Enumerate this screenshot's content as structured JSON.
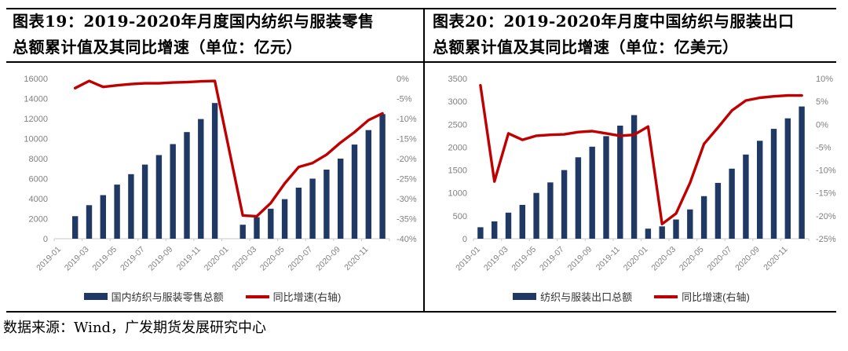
{
  "page": {
    "source": "数据来源：Wind，广发期货发展研究中心"
  },
  "panels": [
    {
      "title": "图表19：2019-2020年月度国内纺织与服装零售总额累计值及其同比增速（单位：亿元）"
    },
    {
      "title": "图表20：2019-2020年月度中国纺织与服装出口总额累计值及其同比增速（单位：亿美元）"
    }
  ],
  "colors": {
    "bar": "#1f3864",
    "line": "#c00000",
    "axis_text": "#808080",
    "axis_line": "#c9c9c9"
  },
  "chart_data": [
    {
      "type": "bar+line",
      "title": "图表19：2019-2020年月度国内纺织与服装零售总额累计值及其同比增速（单位：亿元）",
      "categories": [
        "2019-01",
        "2019-02",
        "2019-03",
        "2019-04",
        "2019-05",
        "2019-06",
        "2019-07",
        "2019-08",
        "2019-09",
        "2019-10",
        "2019-11",
        "2019-12",
        "2020-01",
        "2020-02",
        "2020-03",
        "2020-04",
        "2020-05",
        "2020-06",
        "2020-07",
        "2020-08",
        "2020-09",
        "2020-10",
        "2020-11",
        "2020-12"
      ],
      "x_tick_labels": [
        "2019-01",
        "2019-03",
        "2019-05",
        "2019-07",
        "2019-09",
        "2019-11",
        "2020-01",
        "2020-03",
        "2020-05",
        "2020-07",
        "2020-09",
        "2020-11"
      ],
      "series": [
        {
          "name": "国内纺织与服装零售总额",
          "type": "bar",
          "axis": "left",
          "color": "#1f3864",
          "values": [
            null,
            2250,
            3350,
            4350,
            5400,
            6450,
            7400,
            8350,
            9450,
            10650,
            11950,
            13550,
            null,
            1400,
            2150,
            3000,
            3950,
            5100,
            6000,
            6900,
            8000,
            9400,
            10850,
            12450
          ]
        },
        {
          "name": "同比增速(右轴)",
          "type": "line",
          "axis": "right",
          "color": "#c00000",
          "values": [
            null,
            -2.4,
            -0.6,
            -2.1,
            -1.7,
            -1.4,
            -1.2,
            -1.2,
            -1.0,
            -0.9,
            -0.7,
            -0.6,
            null,
            -34.2,
            -34.4,
            -31.1,
            -26.2,
            -22.1,
            -21.1,
            -19.0,
            -16.0,
            -13.4,
            -10.4,
            -8.7
          ]
        }
      ],
      "y_left": {
        "min": 0,
        "max": 16000,
        "ticks": [
          0,
          2000,
          4000,
          6000,
          8000,
          10000,
          12000,
          14000,
          16000
        ]
      },
      "y_right": {
        "min": -40,
        "max": 0,
        "ticks": [
          "0%",
          "-5%",
          "-10%",
          "-15%",
          "-20%",
          "-25%",
          "-30%",
          "-35%",
          "-40%"
        ]
      },
      "grid": false,
      "legend_position": "bottom"
    },
    {
      "type": "bar+line",
      "title": "图表20：2019-2020年月度中国纺织与服装出口总额累计值及其同比增速（单位：亿美元）",
      "categories": [
        "2019-01",
        "2019-02",
        "2019-03",
        "2019-04",
        "2019-05",
        "2019-06",
        "2019-07",
        "2019-08",
        "2019-09",
        "2019-10",
        "2019-11",
        "2019-12",
        "2020-01",
        "2020-02",
        "2020-03",
        "2020-04",
        "2020-05",
        "2020-06",
        "2020-07",
        "2020-08",
        "2020-09",
        "2020-10",
        "2020-11",
        "2020-12"
      ],
      "x_tick_labels": [
        "2019-01",
        "2019-03",
        "2019-05",
        "2019-07",
        "2019-09",
        "2019-11",
        "2020-01",
        "2020-03",
        "2020-05",
        "2020-07",
        "2020-09",
        "2020-11"
      ],
      "series": [
        {
          "name": "纺织与服装出口总额",
          "type": "bar",
          "axis": "left",
          "color": "#1f3864",
          "values": [
            250,
            380,
            570,
            740,
            1000,
            1230,
            1500,
            1780,
            2010,
            2240,
            2470,
            2700,
            220,
            270,
            420,
            640,
            930,
            1220,
            1530,
            1840,
            2140,
            2400,
            2630,
            2890
          ]
        },
        {
          "name": "同比增速(右轴)",
          "type": "line",
          "axis": "right",
          "color": "#c00000",
          "values": [
            8.5,
            -12.5,
            -2.0,
            -3.4,
            -2.5,
            -2.3,
            -2.2,
            -1.7,
            -1.5,
            -2.0,
            -2.5,
            -2.3,
            -0.5,
            -21.8,
            -19.5,
            -12.8,
            -4.3,
            -0.7,
            3.0,
            5.2,
            5.8,
            6.1,
            6.3,
            6.3
          ]
        }
      ],
      "y_left": {
        "min": 0,
        "max": 3500,
        "ticks": [
          0,
          500,
          1000,
          1500,
          2000,
          2500,
          3000,
          3500
        ]
      },
      "y_right": {
        "min": -25,
        "max": 10,
        "ticks": [
          "10%",
          "5%",
          "0%",
          "-5%",
          "-10%",
          "-15%",
          "-20%",
          "-25%"
        ]
      },
      "grid": false,
      "legend_position": "bottom"
    }
  ]
}
